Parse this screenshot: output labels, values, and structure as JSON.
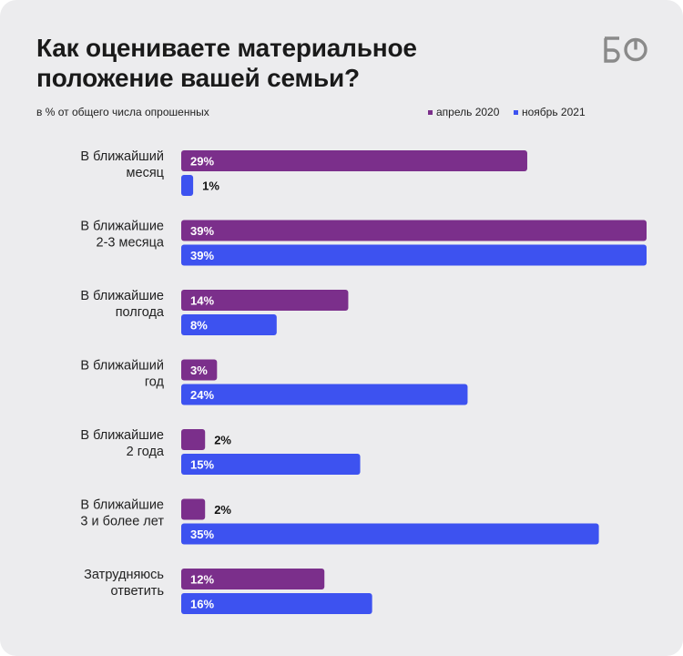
{
  "header": {
    "title": "Как оцениваете материальное положение вашей семьи?",
    "subtitle": "в % от общего числа опрошенных",
    "logo": "БО"
  },
  "colors": {
    "background": "#ececee",
    "april_2020": "#7b2f8b",
    "november_2021": "#3d52f0"
  },
  "chart_data": {
    "type": "bar",
    "orientation": "horizontal",
    "categories": [
      [
        "В ближайший",
        "месяц"
      ],
      [
        "В ближайшие",
        "2-3 месяца"
      ],
      [
        "В ближайшие",
        "полгода"
      ],
      [
        "В ближайший",
        "год"
      ],
      [
        "В ближайшие",
        "2 года"
      ],
      [
        "В ближайшие",
        "3 и более лет"
      ],
      [
        "Затрудняюсь",
        "ответить"
      ]
    ],
    "series": [
      {
        "name": "апрель 2020",
        "color": "#7b2f8b",
        "values": [
          29,
          39,
          14,
          3,
          2,
          2,
          12
        ]
      },
      {
        "name": "ноябрь 2021",
        "color": "#3d52f0",
        "values": [
          1,
          39,
          8,
          24,
          15,
          35,
          16
        ]
      }
    ],
    "value_suffix": "%",
    "xlim": [
      0,
      39
    ],
    "legend_position": "top-right",
    "grid": false
  }
}
